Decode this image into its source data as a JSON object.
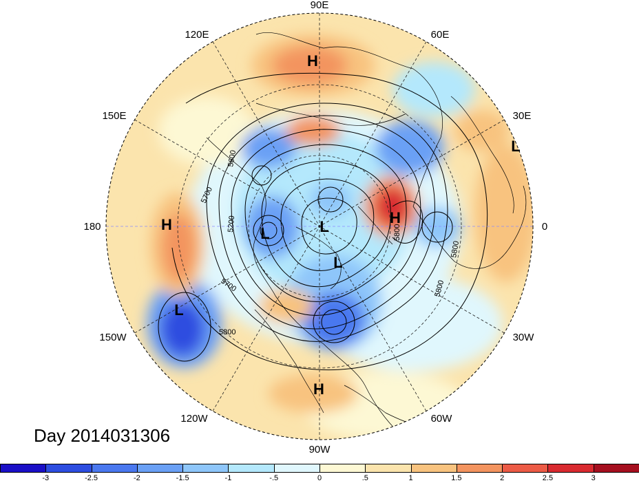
{
  "figure": {
    "day_label": "Day 2014031306",
    "projection": "north-polar-stereographic",
    "longitude_labels": [
      "90E",
      "60E",
      "30E",
      "0",
      "30W",
      "60W",
      "90W",
      "120W",
      "150W",
      "180",
      "150E",
      "120E"
    ],
    "pressure_centers": [
      {
        "type": "H",
        "region": "siberia"
      },
      {
        "type": "L",
        "region": "western-europe"
      },
      {
        "type": "H",
        "region": "north-pacific"
      },
      {
        "type": "L",
        "region": "bering-sea"
      },
      {
        "type": "L",
        "region": "pole"
      },
      {
        "type": "H",
        "region": "barents-scandinavia"
      },
      {
        "type": "L",
        "region": "hudson-bay"
      },
      {
        "type": "L",
        "region": "northeast-pacific"
      },
      {
        "type": "H",
        "region": "central-america"
      }
    ],
    "contour_labels": [
      "5600",
      "5700",
      "5200",
      "5700",
      "5800",
      "5800",
      "5800",
      "5800"
    ]
  },
  "colorbar": {
    "tick_labels": [
      "-3",
      "-2.5",
      "-2",
      "-1.5",
      "-1",
      "-.5",
      "0",
      ".5",
      "1",
      "1.5",
      "2",
      "2.5",
      "3"
    ],
    "colors": [
      "#1a0fc6",
      "#2d4de0",
      "#4a78ef",
      "#6aa0f5",
      "#8ec6fa",
      "#b4e8fc",
      "#e0f7fd",
      "#fdf8d4",
      "#fbe4ad",
      "#f8c37f",
      "#f3945f",
      "#ec5b46",
      "#d92a30",
      "#a50f1f"
    ]
  }
}
